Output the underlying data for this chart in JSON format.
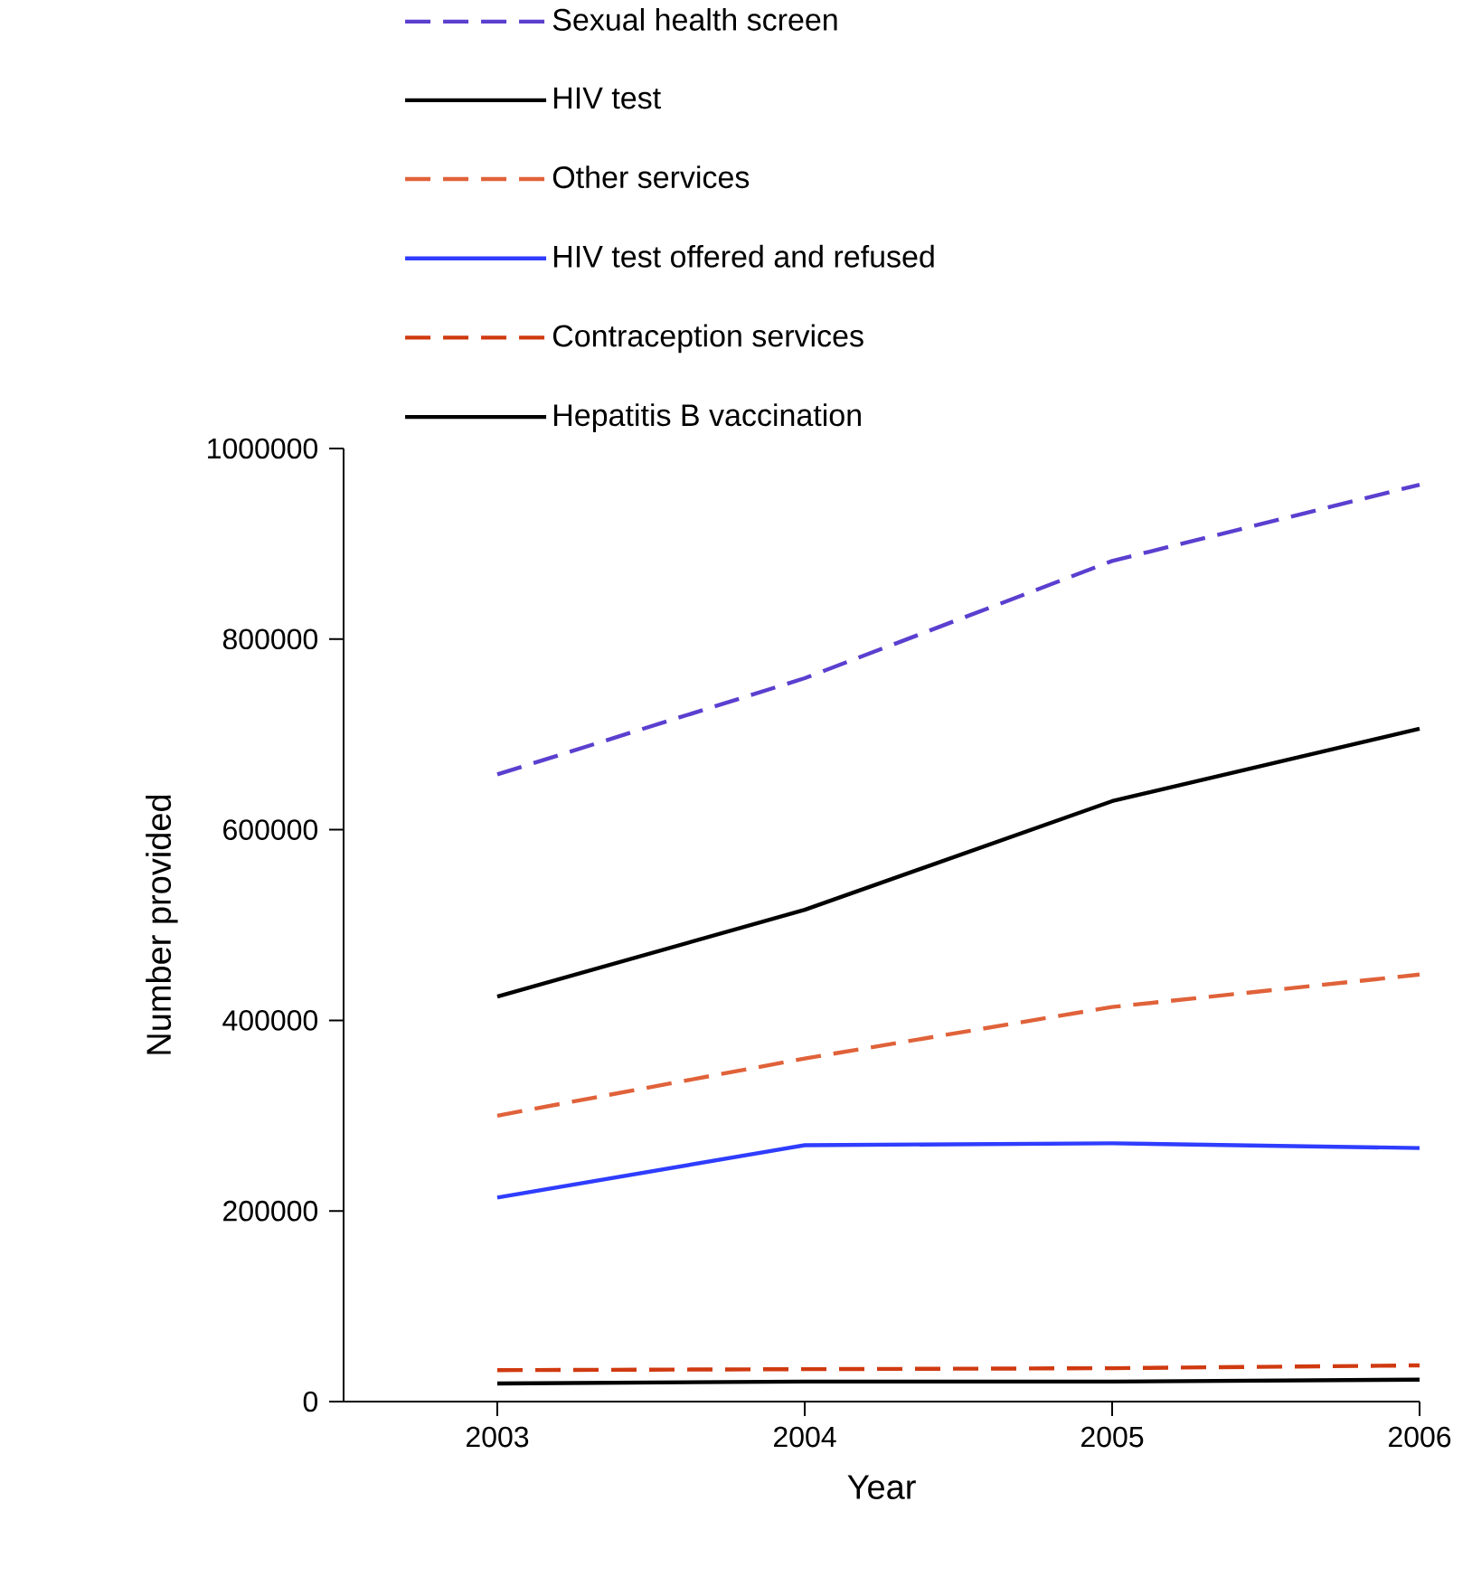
{
  "chart_data": {
    "type": "line",
    "xlabel": "Year",
    "ylabel": "Number provided",
    "x": [
      2003,
      2004,
      2005,
      2006
    ],
    "xlim": [
      2002.5,
      2006
    ],
    "xticks": [
      2003,
      2004,
      2005,
      2006
    ],
    "ylim": [
      0,
      1000000
    ],
    "yticks": [
      0,
      200000,
      400000,
      600000,
      800000,
      1000000
    ],
    "legend": "top",
    "marker": "none",
    "series": [
      {
        "name": "Sexual health screen",
        "color": "#5b3fcf",
        "line_style": "dashed",
        "values": [
          658000,
          759000,
          882000,
          962000
        ]
      },
      {
        "name": "HIV test",
        "color": "#000000",
        "line_style": "solid",
        "values": [
          425000,
          516000,
          630000,
          706000
        ]
      },
      {
        "name": "Other services",
        "color": "#e0623a",
        "line_style": "dashed",
        "values": [
          300000,
          360000,
          414000,
          448000
        ]
      },
      {
        "name": "HIV test offered and refused",
        "color": "#2f3dff",
        "line_style": "solid",
        "values": [
          214000,
          269000,
          271000,
          266000
        ]
      },
      {
        "name": "Contraception services",
        "color": "#d03a10",
        "line_style": "dashed",
        "values": [
          33000,
          34000,
          35000,
          38000
        ]
      },
      {
        "name": "Hepatitis B vaccination",
        "color": "#000000",
        "line_style": "solid",
        "values": [
          19000,
          21000,
          21000,
          23000
        ]
      }
    ]
  }
}
